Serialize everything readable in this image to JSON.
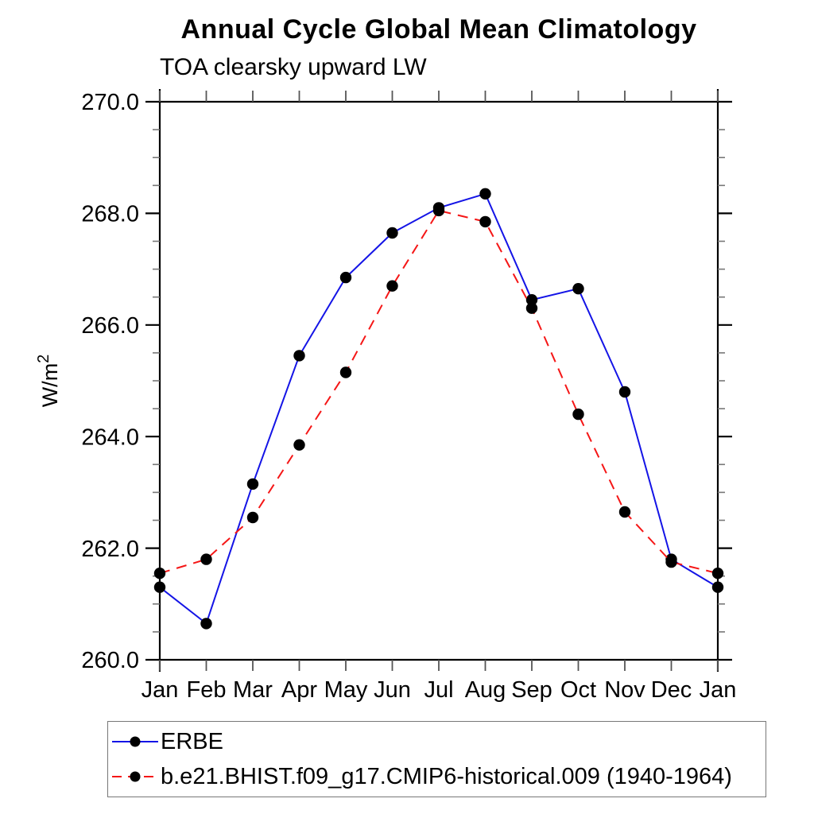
{
  "page": {
    "background": "#ffffff"
  },
  "chart_data": {
    "type": "line",
    "title": "Annual Cycle Global Mean Climatology",
    "subtitle": "TOA clearsky upward LW",
    "xlabel": "",
    "ylabel": "W/m²",
    "x_tick_labels": [
      "Jan",
      "Feb",
      "Mar",
      "Apr",
      "May",
      "Jun",
      "Jul",
      "Aug",
      "Sep",
      "Oct",
      "Nov",
      "Dec",
      "Jan"
    ],
    "ylim": [
      260.0,
      270.0
    ],
    "y_major_ticks": [
      260.0,
      262.0,
      264.0,
      266.0,
      268.0,
      270.0
    ],
    "y_major_tick_labels": [
      "260.0",
      "262.0",
      "264.0",
      "266.0",
      "268.0",
      "270.0"
    ],
    "y_minor_tick_interval": 0.5,
    "grid": false,
    "legend_position": "bottom-left-box",
    "frame_color": "#000000",
    "marker_color": "#000000",
    "series": [
      {
        "name": "ERBE",
        "color": "#1414e6",
        "style": "solid",
        "marker": "circle",
        "values": [
          261.3,
          260.65,
          263.15,
          265.45,
          266.85,
          267.65,
          268.1,
          268.35,
          266.45,
          266.65,
          264.8,
          261.8,
          261.3
        ]
      },
      {
        "name": "b.e21.BHIST.f09_g17.CMIP6-historical.009 (1940-1964)",
        "color": "#f51616",
        "style": "dashed",
        "marker": "circle",
        "values": [
          261.55,
          261.8,
          262.55,
          263.85,
          265.15,
          266.7,
          268.05,
          267.85,
          266.3,
          264.4,
          262.65,
          261.75,
          261.55
        ]
      }
    ]
  }
}
